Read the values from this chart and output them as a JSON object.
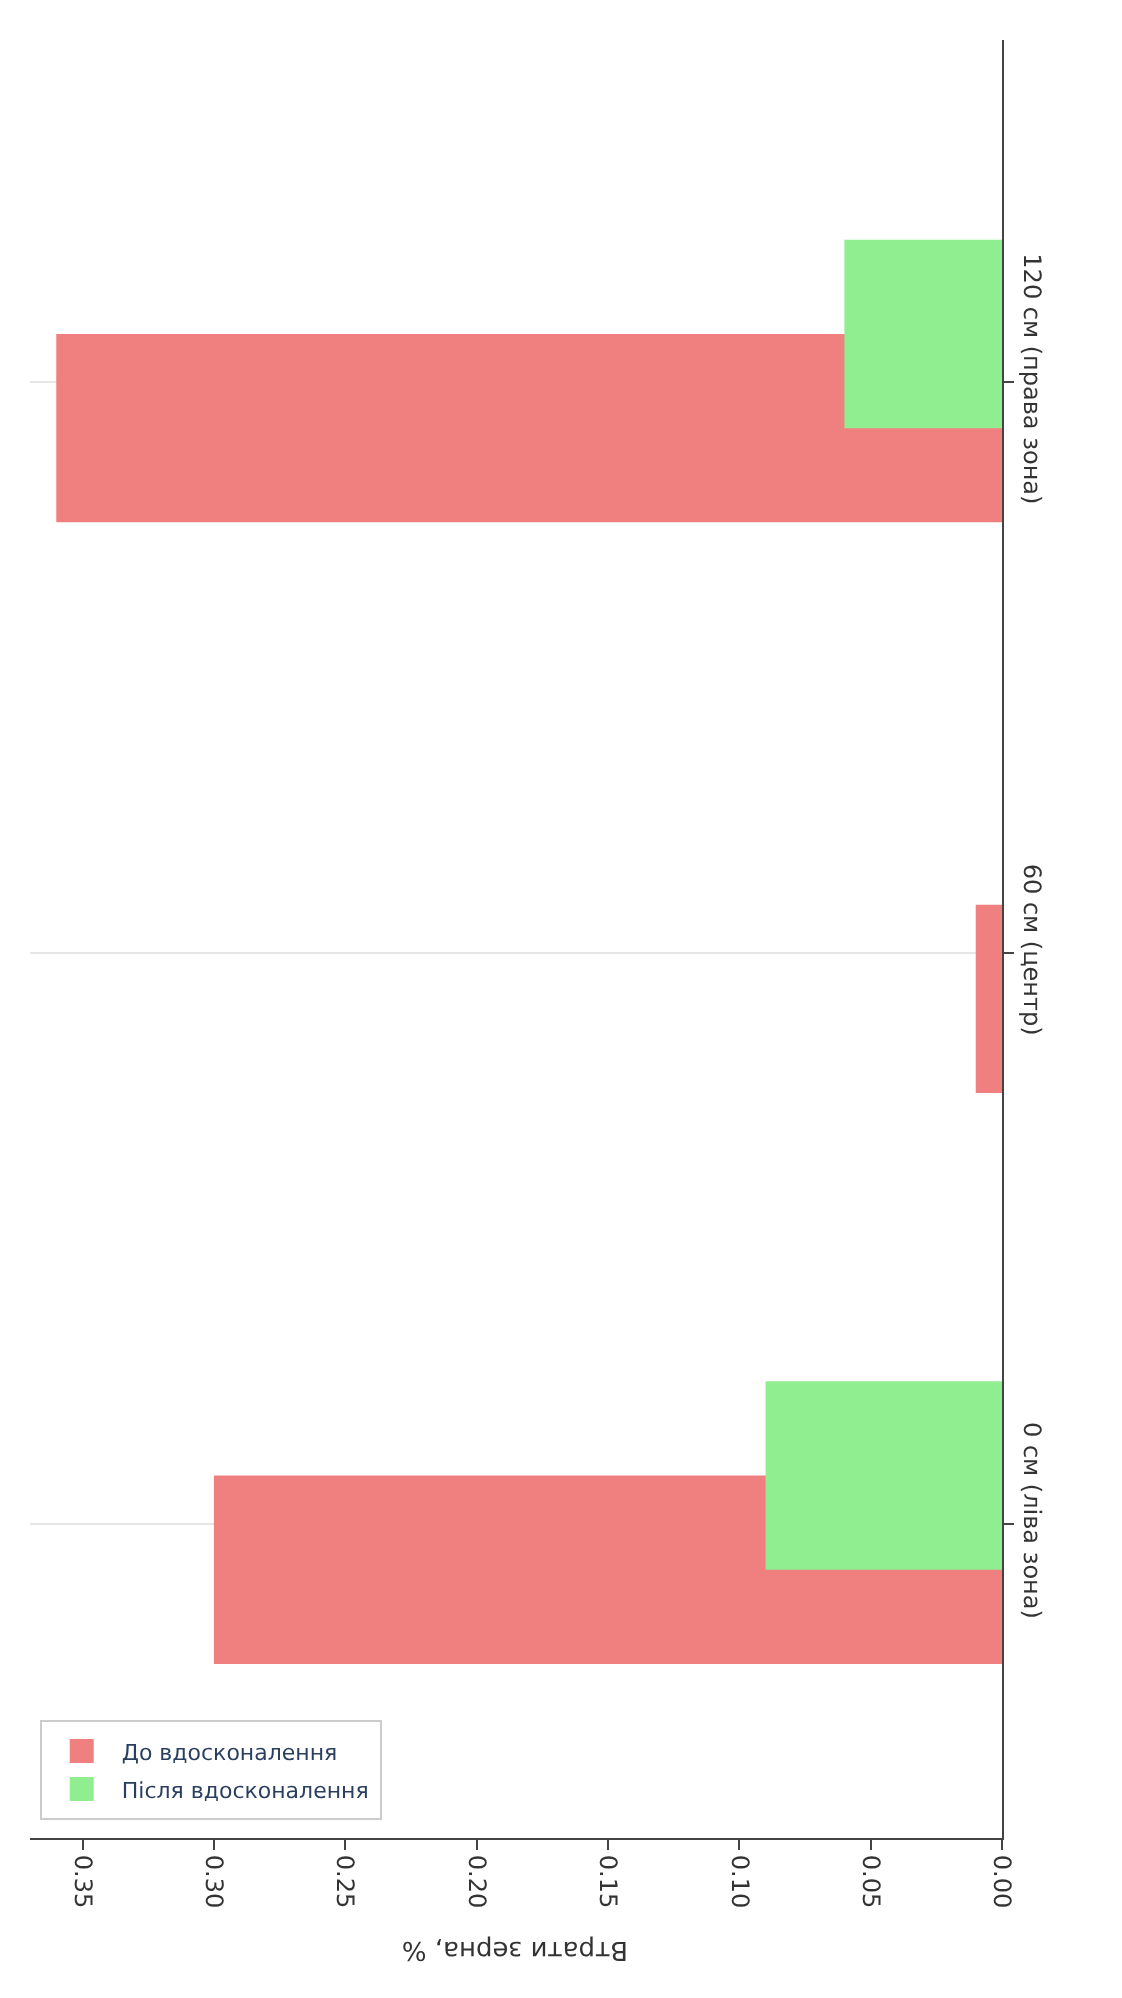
{
  "chart_data": {
    "type": "bar",
    "orientation": "horizontal",
    "xlabel": "Втрати зерна, %",
    "categories": [
      "120 см (права зона)",
      "60 см (центр)",
      "0 см (ліва зона)"
    ],
    "series": [
      {
        "name": "До вдосконалення",
        "color": "#f08080",
        "values": [
          0.36,
          0.01,
          0.3
        ]
      },
      {
        "name": "Після вдосконалення",
        "color": "#90ee90",
        "values": [
          0.06,
          0,
          0.09
        ]
      }
    ],
    "xlim": [
      0.37,
      0
    ],
    "xticks": [
      {
        "value": 0.35,
        "label": "0.35"
      },
      {
        "value": 0.3,
        "label": "0.30"
      },
      {
        "value": 0.25,
        "label": "0.25"
      },
      {
        "value": 0.2,
        "label": "0.20"
      },
      {
        "value": 0.15,
        "label": "0.15"
      },
      {
        "value": 0.1,
        "label": "0.10"
      },
      {
        "value": 0.05,
        "label": "0.05"
      },
      {
        "value": 0,
        "label": "0.00"
      }
    ],
    "grid": "y",
    "legend": "bottom left"
  }
}
